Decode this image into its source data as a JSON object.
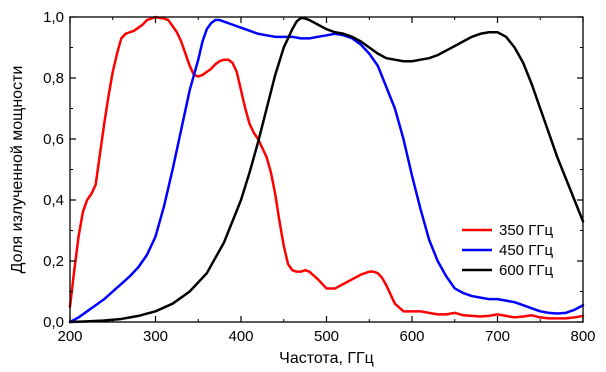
{
  "chart_data": {
    "type": "line",
    "xlabel": "Частота, ГГц",
    "ylabel": "Доля излученной мощности",
    "xlim": [
      200,
      800
    ],
    "ylim": [
      0,
      1.0
    ],
    "xticks": [
      200,
      300,
      400,
      500,
      600,
      700,
      800
    ],
    "xtick_labels": [
      "200",
      "300",
      "400",
      "500",
      "600",
      "700",
      "800"
    ],
    "yticks": [
      0,
      0.2,
      0.4,
      0.6,
      0.8,
      1.0
    ],
    "ytick_labels": [
      "0,0",
      "0,2",
      "0,4",
      "0,6",
      "0,8",
      "1,0"
    ],
    "grid": false,
    "legend_position": "lower-right",
    "series": [
      {
        "name": "350 ГГц",
        "color": "#ff0000",
        "x": [
          200,
          205,
          210,
          215,
          220,
          225,
          230,
          235,
          240,
          245,
          250,
          255,
          260,
          265,
          270,
          275,
          280,
          285,
          290,
          295,
          300,
          305,
          310,
          315,
          320,
          325,
          330,
          335,
          340,
          345,
          350,
          355,
          360,
          365,
          370,
          375,
          380,
          385,
          390,
          395,
          400,
          405,
          410,
          415,
          420,
          425,
          430,
          435,
          440,
          445,
          450,
          455,
          460,
          465,
          470,
          475,
          480,
          490,
          500,
          510,
          520,
          530,
          540,
          550,
          555,
          560,
          565,
          570,
          575,
          580,
          590,
          600,
          610,
          620,
          630,
          640,
          650,
          660,
          670,
          680,
          690,
          700,
          710,
          720,
          730,
          740,
          750,
          760,
          770,
          780,
          790,
          800
        ],
        "y": [
          0.05,
          0.17,
          0.28,
          0.36,
          0.4,
          0.42,
          0.45,
          0.55,
          0.65,
          0.74,
          0.82,
          0.88,
          0.93,
          0.945,
          0.95,
          0.955,
          0.965,
          0.975,
          0.99,
          0.995,
          1.0,
          0.997,
          0.995,
          0.99,
          0.97,
          0.95,
          0.92,
          0.88,
          0.84,
          0.81,
          0.805,
          0.81,
          0.82,
          0.83,
          0.845,
          0.855,
          0.86,
          0.86,
          0.85,
          0.82,
          0.76,
          0.7,
          0.65,
          0.62,
          0.6,
          0.57,
          0.54,
          0.49,
          0.42,
          0.33,
          0.25,
          0.19,
          0.17,
          0.165,
          0.165,
          0.17,
          0.165,
          0.14,
          0.11,
          0.11,
          0.125,
          0.14,
          0.155,
          0.165,
          0.165,
          0.16,
          0.145,
          0.12,
          0.09,
          0.06,
          0.035,
          0.035,
          0.035,
          0.03,
          0.025,
          0.025,
          0.03,
          0.022,
          0.02,
          0.018,
          0.02,
          0.025,
          0.02,
          0.015,
          0.018,
          0.022,
          0.015,
          0.012,
          0.012,
          0.012,
          0.015,
          0.02
        ]
      },
      {
        "name": "450 ГГц",
        "color": "#0000ff",
        "x": [
          200,
          210,
          220,
          230,
          240,
          250,
          260,
          270,
          280,
          290,
          300,
          310,
          320,
          330,
          340,
          350,
          355,
          360,
          365,
          370,
          375,
          380,
          390,
          400,
          410,
          420,
          430,
          440,
          450,
          460,
          470,
          480,
          490,
          500,
          510,
          520,
          530,
          540,
          550,
          560,
          570,
          580,
          590,
          600,
          610,
          620,
          630,
          640,
          650,
          660,
          670,
          680,
          690,
          700,
          710,
          720,
          730,
          740,
          750,
          760,
          770,
          780,
          790,
          800
        ],
        "y": [
          0.0,
          0.015,
          0.035,
          0.055,
          0.075,
          0.1,
          0.125,
          0.15,
          0.18,
          0.22,
          0.28,
          0.38,
          0.5,
          0.63,
          0.76,
          0.86,
          0.92,
          0.96,
          0.98,
          0.99,
          0.99,
          0.985,
          0.975,
          0.965,
          0.955,
          0.945,
          0.94,
          0.935,
          0.935,
          0.935,
          0.93,
          0.93,
          0.935,
          0.94,
          0.945,
          0.94,
          0.93,
          0.91,
          0.88,
          0.84,
          0.77,
          0.7,
          0.6,
          0.48,
          0.37,
          0.27,
          0.2,
          0.15,
          0.11,
          0.095,
          0.085,
          0.08,
          0.075,
          0.075,
          0.07,
          0.065,
          0.055,
          0.045,
          0.035,
          0.03,
          0.028,
          0.03,
          0.04,
          0.055
        ]
      },
      {
        "name": "600 ГГц",
        "color": "#000000",
        "x": [
          200,
          220,
          240,
          260,
          280,
          300,
          320,
          340,
          360,
          380,
          400,
          410,
          420,
          430,
          440,
          450,
          460,
          465,
          470,
          475,
          480,
          490,
          500,
          510,
          520,
          530,
          540,
          550,
          560,
          570,
          580,
          590,
          600,
          610,
          620,
          630,
          640,
          650,
          660,
          670,
          680,
          690,
          700,
          710,
          720,
          730,
          740,
          750,
          760,
          770,
          780,
          790,
          800
        ],
        "y": [
          0.0,
          0.002,
          0.005,
          0.01,
          0.02,
          0.035,
          0.06,
          0.1,
          0.16,
          0.26,
          0.4,
          0.49,
          0.59,
          0.7,
          0.81,
          0.9,
          0.96,
          0.985,
          0.997,
          0.995,
          0.99,
          0.975,
          0.96,
          0.95,
          0.945,
          0.935,
          0.92,
          0.9,
          0.88,
          0.865,
          0.86,
          0.855,
          0.855,
          0.86,
          0.865,
          0.875,
          0.89,
          0.905,
          0.92,
          0.935,
          0.945,
          0.95,
          0.95,
          0.935,
          0.9,
          0.85,
          0.78,
          0.7,
          0.62,
          0.54,
          0.47,
          0.4,
          0.33
        ]
      }
    ]
  }
}
